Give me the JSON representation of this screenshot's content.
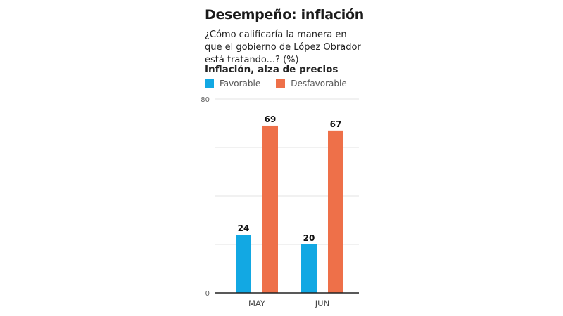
{
  "header": {
    "title": "Desempeño: inflación",
    "subtitle": "¿Cómo calificaría la manera en que el gobierno de López Obrador está tratando...? (%)",
    "section": "Inflación, alza de precios"
  },
  "legend": [
    {
      "label": "Favorable",
      "color": "#12a8e3"
    },
    {
      "label": "Desfavorable",
      "color": "#ee7049"
    }
  ],
  "chart_data": {
    "type": "bar",
    "title": "Desempeño: inflación",
    "subtitle": "Inflación, alza de precios",
    "categories": [
      "MAY",
      "JUN"
    ],
    "series": [
      {
        "name": "Favorable",
        "values": [
          24,
          20
        ],
        "color": "#12a8e3"
      },
      {
        "name": "Desfavorable",
        "values": [
          69,
          67
        ],
        "color": "#ee7049"
      }
    ],
    "ylim": [
      0,
      80
    ],
    "yticks_labeled": [
      0,
      80
    ],
    "gridlines": [
      20,
      40,
      60,
      80
    ],
    "legend_position": "top-left",
    "xlabel": "",
    "ylabel": ""
  }
}
